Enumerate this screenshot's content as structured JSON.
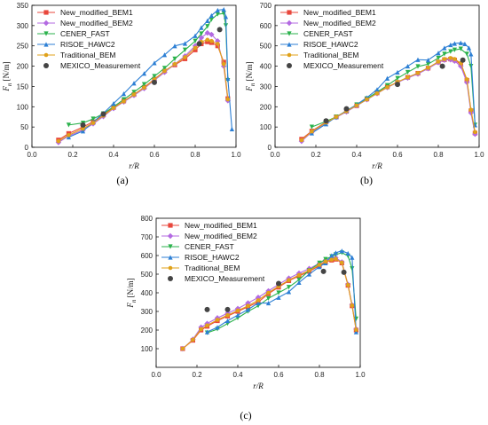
{
  "chart_data": [
    {
      "type": "line",
      "panel_label": "(a)",
      "xlabel": "r/R",
      "ylabel": "F_n [N/m]",
      "ylabel_main": "F",
      "ylabel_sub": "n",
      "ylabel_unit": " [N/m]",
      "xlim": [
        0.0,
        1.0
      ],
      "ylim": [
        0,
        350
      ],
      "xticks": [
        "0.0",
        "0.2",
        "0.4",
        "0.6",
        "0.8",
        "1.0"
      ],
      "yticks": [
        "0",
        "50",
        "100",
        "150",
        "200",
        "250",
        "300",
        "350"
      ],
      "legend_position": "top-left",
      "series": [
        {
          "name": "New_modified_BEM1",
          "color": "#e8473c",
          "marker": "square",
          "x": [
            0.13,
            0.18,
            0.25,
            0.3,
            0.35,
            0.4,
            0.45,
            0.5,
            0.55,
            0.6,
            0.65,
            0.7,
            0.75,
            0.8,
            0.83,
            0.86,
            0.88,
            0.91,
            0.94,
            0.96
          ],
          "y": [
            18,
            34,
            50,
            63,
            80,
            98,
            114,
            130,
            148,
            168,
            188,
            203,
            218,
            240,
            255,
            260,
            258,
            250,
            210,
            120
          ]
        },
        {
          "name": "New_modified_BEM2",
          "color": "#b36ae2",
          "marker": "diamond",
          "x": [
            0.13,
            0.18,
            0.25,
            0.3,
            0.35,
            0.4,
            0.45,
            0.5,
            0.55,
            0.6,
            0.65,
            0.7,
            0.75,
            0.8,
            0.83,
            0.86,
            0.88,
            0.91,
            0.94,
            0.96
          ],
          "y": [
            12,
            28,
            42,
            58,
            76,
            96,
            112,
            128,
            145,
            165,
            185,
            205,
            225,
            250,
            270,
            282,
            278,
            262,
            200,
            115
          ]
        },
        {
          "name": "CENER_FAST",
          "color": "#2bb24c",
          "marker": "triangle-down",
          "x": [
            0.18,
            0.25,
            0.3,
            0.35,
            0.4,
            0.45,
            0.5,
            0.55,
            0.6,
            0.65,
            0.7,
            0.75,
            0.8,
            0.83,
            0.86,
            0.88,
            0.91,
            0.94,
            0.95,
            0.96
          ],
          "y": [
            55,
            60,
            70,
            83,
            100,
            118,
            136,
            155,
            175,
            195,
            218,
            240,
            262,
            280,
            298,
            315,
            328,
            330,
            300,
            165
          ]
        },
        {
          "name": "RISOE_HAWC2",
          "color": "#2c7fd4",
          "marker": "triangle-up",
          "x": [
            0.18,
            0.25,
            0.3,
            0.35,
            0.4,
            0.45,
            0.5,
            0.55,
            0.6,
            0.65,
            0.7,
            0.75,
            0.8,
            0.83,
            0.86,
            0.88,
            0.91,
            0.94,
            0.95,
            0.96,
            0.98
          ],
          "y": [
            25,
            40,
            62,
            84,
            108,
            132,
            158,
            182,
            208,
            228,
            250,
            256,
            275,
            295,
            312,
            325,
            338,
            340,
            322,
            170,
            45
          ]
        },
        {
          "name": "Traditional_BEM",
          "color": "#e0a21a",
          "marker": "circle",
          "x": [
            0.13,
            0.18,
            0.25,
            0.3,
            0.35,
            0.4,
            0.45,
            0.5,
            0.55,
            0.6,
            0.65,
            0.7,
            0.75,
            0.8,
            0.83,
            0.86,
            0.88,
            0.91,
            0.94,
            0.96
          ],
          "y": [
            15,
            30,
            46,
            60,
            78,
            97,
            113,
            130,
            147,
            167,
            188,
            205,
            222,
            245,
            260,
            265,
            262,
            255,
            205,
            118
          ]
        },
        {
          "name": "MEXICO_Measurement",
          "color": "#444444",
          "marker": "dot",
          "scatter": true,
          "x": [
            0.25,
            0.35,
            0.6,
            0.82,
            0.92
          ],
          "y": [
            55,
            82,
            160,
            255,
            290
          ]
        }
      ]
    },
    {
      "type": "line",
      "panel_label": "(b)",
      "xlabel": "r/R",
      "ylabel": "F_n [N/m]",
      "ylabel_main": "F",
      "ylabel_sub": "n",
      "ylabel_unit": " [N/m]",
      "xlim": [
        0.0,
        1.0
      ],
      "ylim": [
        0,
        700
      ],
      "xticks": [
        "0.0",
        "0.2",
        "0.4",
        "0.6",
        "0.8",
        "1.0"
      ],
      "yticks": [
        "0",
        "100",
        "200",
        "300",
        "400",
        "500",
        "600",
        "700"
      ],
      "legend_position": "top-left",
      "series": [
        {
          "name": "New_modified_BEM1",
          "color": "#e8473c",
          "marker": "square",
          "x": [
            0.13,
            0.18,
            0.25,
            0.3,
            0.35,
            0.4,
            0.45,
            0.5,
            0.55,
            0.6,
            0.65,
            0.7,
            0.75,
            0.8,
            0.83,
            0.86,
            0.88,
            0.91,
            0.94,
            0.96,
            0.98
          ],
          "y": [
            40,
            80,
            125,
            150,
            178,
            205,
            238,
            268,
            298,
            320,
            345,
            365,
            390,
            420,
            432,
            435,
            430,
            410,
            330,
            180,
            70
          ]
        },
        {
          "name": "New_modified_BEM2",
          "color": "#b36ae2",
          "marker": "diamond",
          "x": [
            0.13,
            0.18,
            0.25,
            0.3,
            0.35,
            0.4,
            0.45,
            0.5,
            0.55,
            0.6,
            0.65,
            0.7,
            0.75,
            0.8,
            0.83,
            0.86,
            0.88,
            0.91,
            0.94,
            0.96,
            0.98
          ],
          "y": [
            30,
            75,
            120,
            148,
            175,
            205,
            235,
            265,
            295,
            320,
            342,
            362,
            388,
            418,
            430,
            432,
            425,
            400,
            320,
            170,
            65
          ]
        },
        {
          "name": "CENER_FAST",
          "color": "#2bb24c",
          "marker": "triangle-down",
          "x": [
            0.18,
            0.25,
            0.3,
            0.35,
            0.4,
            0.45,
            0.5,
            0.55,
            0.6,
            0.65,
            0.7,
            0.75,
            0.8,
            0.83,
            0.86,
            0.88,
            0.91,
            0.94,
            0.96,
            0.98
          ],
          "y": [
            100,
            128,
            150,
            180,
            210,
            240,
            272,
            305,
            340,
            370,
            398,
            410,
            440,
            460,
            472,
            480,
            485,
            460,
            400,
            110
          ]
        },
        {
          "name": "RISOE_HAWC2",
          "color": "#2c7fd4",
          "marker": "triangle-up",
          "x": [
            0.18,
            0.25,
            0.3,
            0.35,
            0.4,
            0.45,
            0.5,
            0.55,
            0.6,
            0.65,
            0.7,
            0.75,
            0.8,
            0.83,
            0.86,
            0.88,
            0.91,
            0.93,
            0.95,
            0.96,
            0.98
          ],
          "y": [
            70,
            115,
            150,
            180,
            210,
            245,
            285,
            340,
            370,
            400,
            432,
            430,
            465,
            490,
            505,
            512,
            515,
            510,
            490,
            460,
            110
          ]
        },
        {
          "name": "Traditional_BEM",
          "color": "#e0a21a",
          "marker": "circle",
          "x": [
            0.13,
            0.18,
            0.25,
            0.3,
            0.35,
            0.4,
            0.45,
            0.5,
            0.55,
            0.6,
            0.65,
            0.7,
            0.75,
            0.8,
            0.83,
            0.86,
            0.88,
            0.91,
            0.94,
            0.96,
            0.98
          ],
          "y": [
            35,
            78,
            122,
            150,
            178,
            206,
            236,
            266,
            296,
            322,
            345,
            366,
            392,
            422,
            435,
            440,
            435,
            415,
            335,
            185,
            75
          ]
        },
        {
          "name": "MEXICO_Measurement",
          "color": "#444444",
          "marker": "dot",
          "scatter": true,
          "x": [
            0.25,
            0.35,
            0.6,
            0.82,
            0.92
          ],
          "y": [
            130,
            190,
            310,
            400,
            430
          ]
        }
      ]
    },
    {
      "type": "line",
      "panel_label": "(c)",
      "xlabel": "r/R",
      "ylabel": "F_n [N/m]",
      "ylabel_main": "F",
      "ylabel_sub": "n",
      "ylabel_unit": " [N/m]",
      "xlim": [
        0.0,
        1.0
      ],
      "ylim": [
        0,
        800
      ],
      "xticks": [
        "0.0",
        "0.2",
        "0.4",
        "0.6",
        "0.8",
        "1.0"
      ],
      "yticks": [
        "100",
        "200",
        "300",
        "400",
        "500",
        "600",
        "700",
        "800"
      ],
      "legend_position": "top-left",
      "series": [
        {
          "name": "New_modified_BEM1",
          "color": "#e8473c",
          "marker": "square",
          "x": [
            0.13,
            0.18,
            0.22,
            0.25,
            0.3,
            0.35,
            0.4,
            0.45,
            0.5,
            0.55,
            0.6,
            0.65,
            0.7,
            0.75,
            0.8,
            0.83,
            0.86,
            0.88,
            0.91,
            0.94,
            0.96,
            0.98
          ],
          "y": [
            100,
            145,
            200,
            220,
            250,
            275,
            300,
            325,
            350,
            395,
            430,
            465,
            490,
            515,
            545,
            565,
            575,
            580,
            560,
            440,
            330,
            200
          ]
        },
        {
          "name": "New_modified_BEM2",
          "color": "#b36ae2",
          "marker": "diamond",
          "x": [
            0.13,
            0.18,
            0.22,
            0.25,
            0.3,
            0.35,
            0.4,
            0.45,
            0.5,
            0.55,
            0.6,
            0.65,
            0.7,
            0.75,
            0.8,
            0.83,
            0.86,
            0.88,
            0.91,
            0.94,
            0.96,
            0.98
          ],
          "y": [
            100,
            150,
            215,
            235,
            265,
            290,
            315,
            345,
            375,
            410,
            445,
            478,
            505,
            530,
            558,
            575,
            585,
            588,
            565,
            445,
            335,
            205
          ]
        },
        {
          "name": "CENER_FAST",
          "color": "#2bb24c",
          "marker": "triangle-down",
          "x": [
            0.25,
            0.3,
            0.35,
            0.4,
            0.45,
            0.5,
            0.55,
            0.6,
            0.65,
            0.7,
            0.75,
            0.8,
            0.83,
            0.86,
            0.88,
            0.91,
            0.94,
            0.96,
            0.98
          ],
          "y": [
            185,
            205,
            235,
            265,
            300,
            330,
            370,
            400,
            430,
            470,
            520,
            560,
            580,
            595,
            605,
            615,
            598,
            530,
            260
          ]
        },
        {
          "name": "RISOE_HAWC2",
          "color": "#2c7fd4",
          "marker": "triangle-up",
          "x": [
            0.25,
            0.3,
            0.35,
            0.4,
            0.45,
            0.5,
            0.55,
            0.6,
            0.65,
            0.7,
            0.75,
            0.8,
            0.83,
            0.86,
            0.88,
            0.91,
            0.94,
            0.96,
            0.98
          ],
          "y": [
            190,
            215,
            250,
            280,
            310,
            345,
            345,
            375,
            405,
            455,
            500,
            540,
            560,
            600,
            615,
            625,
            612,
            590,
            190
          ]
        },
        {
          "name": "Traditional_BEM",
          "color": "#e0a21a",
          "marker": "circle",
          "x": [
            0.13,
            0.18,
            0.22,
            0.25,
            0.3,
            0.35,
            0.4,
            0.45,
            0.5,
            0.55,
            0.6,
            0.65,
            0.7,
            0.75,
            0.8,
            0.83,
            0.86,
            0.88,
            0.91,
            0.94,
            0.96,
            0.98
          ],
          "y": [
            100,
            148,
            205,
            225,
            255,
            280,
            305,
            330,
            360,
            400,
            435,
            468,
            495,
            520,
            550,
            568,
            578,
            582,
            562,
            442,
            332,
            202
          ]
        },
        {
          "name": "MEXICO_Measurement",
          "color": "#444444",
          "marker": "dot",
          "scatter": true,
          "x": [
            0.25,
            0.35,
            0.6,
            0.82,
            0.92
          ],
          "y": [
            310,
            310,
            450,
            515,
            510
          ]
        }
      ]
    }
  ]
}
